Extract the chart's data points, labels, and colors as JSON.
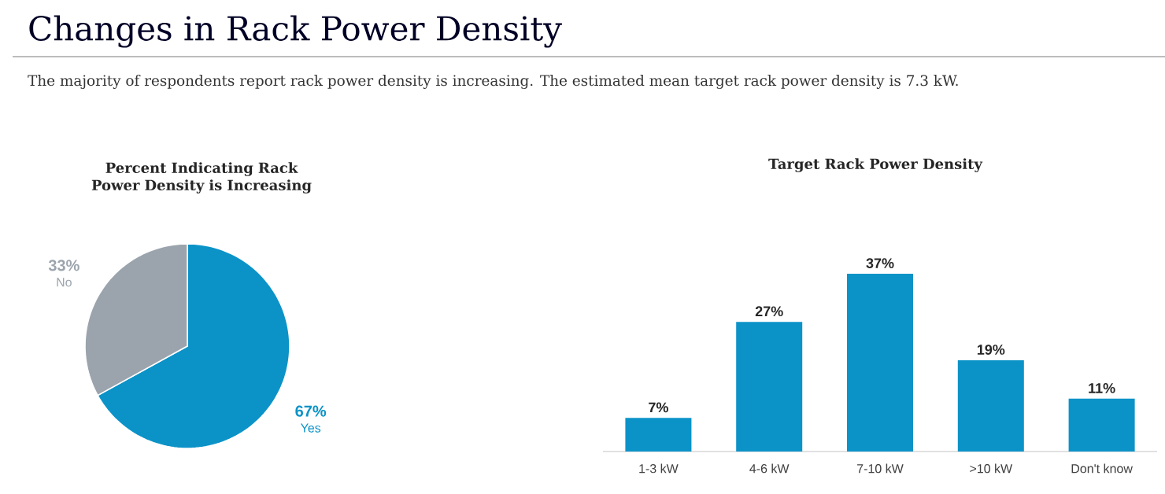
{
  "chart_data": [
    {
      "type": "pie",
      "title": "Percent Indicating Rack Power Density is Increasing",
      "annotations": [
        "Changes in Rack Power Density",
        "The majority of respondents report rack power density is increasing. The estimated mean target rack power density is 7.3 kW."
      ],
      "categories": [
        "Yes",
        "No"
      ],
      "values": [
        67,
        33
      ],
      "colors": [
        "#0b93c8",
        "#9ba4ad"
      ],
      "value_labels": [
        "67%",
        "33%"
      ]
    },
    {
      "type": "bar",
      "title": "Target Rack Power Density",
      "categories": [
        "1-3 kW",
        "4-6 kW",
        "7-10 kW",
        ">10 kW",
        "Don't know"
      ],
      "values": [
        7,
        27,
        37,
        19,
        11
      ],
      "color": "#0b93c8",
      "value_labels": [
        "7%",
        "27%",
        "37%",
        "19%",
        "11%"
      ]
    }
  ]
}
